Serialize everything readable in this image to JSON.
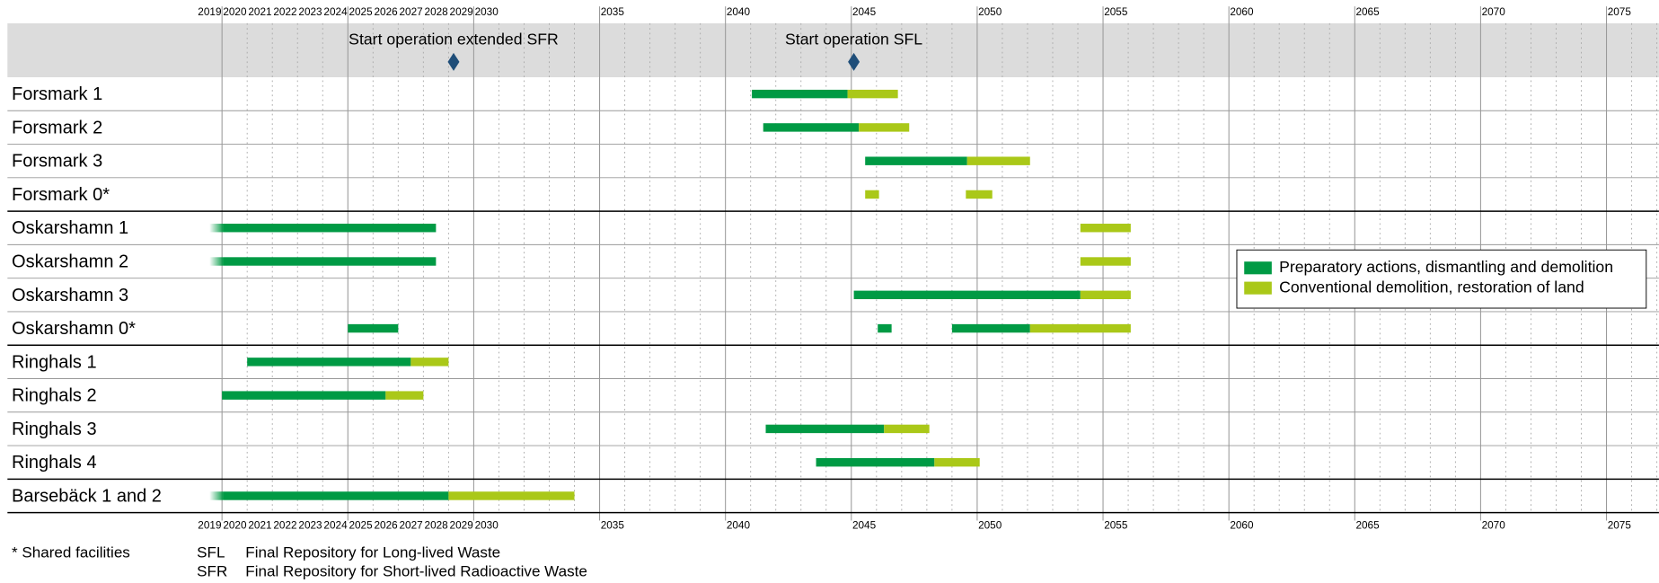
{
  "chart_data": {
    "type": "gantt",
    "xlim": [
      2019,
      2077
    ],
    "xticks": [
      2019,
      2020,
      2021,
      2022,
      2023,
      2024,
      2025,
      2026,
      2027,
      2028,
      2029,
      2030,
      2035,
      2040,
      2045,
      2050,
      2055,
      2060,
      2065,
      2070,
      2075
    ],
    "grid": true,
    "legend": "center right",
    "series": [
      {
        "name": "Preparatory actions, dismantling and demolition",
        "color": "#009a44"
      },
      {
        "name": "Conventional demolition, restoration of land",
        "color": "#aac818"
      }
    ],
    "milestones": [
      {
        "label": "Start operation extended SFR",
        "value": 2029.2,
        "color": "#1f4e79"
      },
      {
        "label": "Start operation SFL",
        "value": 2045.1,
        "color": "#1f4e79"
      }
    ],
    "groups": [
      [
        {
          "label": "Forsmark 1",
          "bars": [
            {
              "series": 0,
              "start": 2041.05,
              "end": 2044.85
            },
            {
              "series": 1,
              "start": 2044.85,
              "end": 2046.85
            }
          ]
        },
        {
          "label": "Forsmark 2",
          "bars": [
            {
              "series": 0,
              "start": 2041.5,
              "end": 2045.3
            },
            {
              "series": 1,
              "start": 2045.3,
              "end": 2047.3
            }
          ]
        },
        {
          "label": "Forsmark 3",
          "bars": [
            {
              "series": 0,
              "start": 2045.55,
              "end": 2049.6
            },
            {
              "series": 1,
              "start": 2049.6,
              "end": 2052.1
            }
          ]
        },
        {
          "label": "Forsmark 0*",
          "bars": [
            {
              "series": 1,
              "start": 2045.55,
              "end": 2046.1
            },
            {
              "series": 1,
              "start": 2049.55,
              "end": 2050.6
            }
          ]
        }
      ],
      [
        {
          "label": "Oskarshamn 1",
          "bars": [
            {
              "series": 0,
              "start": 2019.5,
              "end": 2028.5
            },
            {
              "series": 1,
              "start": 2054.1,
              "end": 2056.1
            }
          ]
        },
        {
          "label": "Oskarshamn 2",
          "bars": [
            {
              "series": 0,
              "start": 2019.5,
              "end": 2028.5
            },
            {
              "series": 1,
              "start": 2054.1,
              "end": 2056.1
            }
          ]
        },
        {
          "label": "Oskarshamn 3",
          "bars": [
            {
              "series": 0,
              "start": 2045.1,
              "end": 2054.1
            },
            {
              "series": 1,
              "start": 2054.1,
              "end": 2056.1
            }
          ]
        },
        {
          "label": "Oskarshamn 0*",
          "bars": [
            {
              "series": 0,
              "start": 2025,
              "end": 2027
            },
            {
              "series": 0,
              "start": 2046.05,
              "end": 2046.6
            },
            {
              "series": 0,
              "start": 2049,
              "end": 2052.1
            },
            {
              "series": 1,
              "start": 2052.1,
              "end": 2056.1
            }
          ]
        }
      ],
      [
        {
          "label": "Ringhals 1",
          "bars": [
            {
              "series": 0,
              "start": 2021,
              "end": 2027.5
            },
            {
              "series": 1,
              "start": 2027.5,
              "end": 2029
            }
          ]
        },
        {
          "label": "Ringhals 2",
          "bars": [
            {
              "series": 0,
              "start": 2020,
              "end": 2026.5
            },
            {
              "series": 1,
              "start": 2026.5,
              "end": 2028
            }
          ]
        },
        {
          "label": "Ringhals 3",
          "bars": [
            {
              "series": 0,
              "start": 2041.6,
              "end": 2046.3
            },
            {
              "series": 1,
              "start": 2046.3,
              "end": 2048.1
            }
          ]
        },
        {
          "label": "Ringhals 4",
          "bars": [
            {
              "series": 0,
              "start": 2043.6,
              "end": 2048.3
            },
            {
              "series": 1,
              "start": 2048.3,
              "end": 2050.1
            }
          ]
        }
      ],
      [
        {
          "label": "Barsebäck 1 and 2",
          "bars": [
            {
              "series": 0,
              "start": 2019.5,
              "end": 2029
            },
            {
              "series": 1,
              "start": 2029,
              "end": 2034
            }
          ]
        }
      ]
    ],
    "notes": {
      "shared": "* Shared facilities",
      "abbreviations": [
        {
          "abbr": "SFL",
          "text": "Final Repository for Long-lived Waste"
        },
        {
          "abbr": "SFR",
          "text": "Final Repository for Short-lived Radioactive Waste"
        }
      ]
    }
  }
}
